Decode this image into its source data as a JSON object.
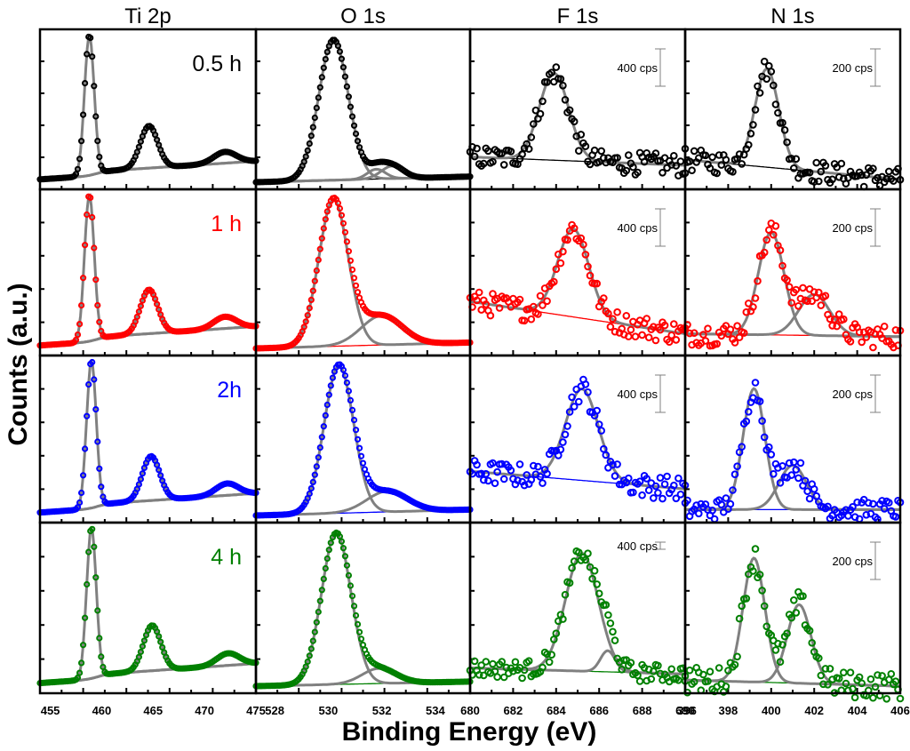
{
  "chart_data": {
    "type": "line",
    "title": "",
    "xlabel": "Binding Energy (eV)",
    "ylabel": "Counts (a.u.)",
    "grid": false,
    "legend": "none",
    "columns": [
      {
        "name": "Ti 2p",
        "xlim": [
          454,
          475
        ],
        "ticks": [
          455,
          460,
          465,
          470,
          475
        ],
        "tick_labels": [
          "455",
          "460",
          "465",
          "470",
          "475"
        ],
        "scale_bar": null
      },
      {
        "name": "O 1s",
        "xlim": [
          527.3,
          535.3
        ],
        "ticks": [
          528,
          530,
          532,
          534
        ],
        "tick_labels": [
          "528",
          "530",
          "532",
          "534"
        ],
        "scale_bar": null
      },
      {
        "name": "F 1s",
        "xlim": [
          680,
          690
        ],
        "ticks": [
          680,
          682,
          684,
          686,
          688,
          690
        ],
        "tick_labels": [
          "680",
          "682",
          "684",
          "686",
          "688",
          "690"
        ],
        "scale_bar": "400 cps"
      },
      {
        "name": "N 1s",
        "xlim": [
          396,
          406
        ],
        "ticks": [
          396,
          398,
          400,
          402,
          404,
          406
        ],
        "tick_labels": [
          "396",
          "398",
          "400",
          "402",
          "404",
          "406"
        ],
        "scale_bar": "200 cps"
      }
    ],
    "rows": [
      {
        "label": "0.5 h",
        "color": "#000000"
      },
      {
        "label": "1 h",
        "color": "#ff0000"
      },
      {
        "label": "2h",
        "color": "#0000ff"
      },
      {
        "label": "4 h",
        "color": "#008000"
      }
    ],
    "fit_color": "#808080",
    "panels": [
      [
        {
          "peaks": [
            {
              "center": 458.8,
              "height": 1.0,
              "fwhm": 1.1
            },
            {
              "center": 464.6,
              "height": 0.3,
              "fwhm": 2.0
            },
            {
              "center": 472.0,
              "height": 0.08,
              "fwhm": 2.6
            }
          ],
          "background": [
            0.02,
            0.12
          ],
          "step": 459.5,
          "noise": 0.0
        },
        {
          "peaks": [
            {
              "center": 530.2,
              "height": 1.0,
              "fwhm": 1.3
            },
            {
              "center": 531.8,
              "height": 0.07,
              "fwhm": 0.8
            },
            {
              "center": 532.4,
              "height": 0.09,
              "fwhm": 1.0
            }
          ],
          "background": [
            0.0,
            0.04
          ],
          "step": null,
          "noise": 0.0
        },
        {
          "peaks": [
            {
              "center": 683.9,
              "height": 0.62,
              "fwhm": 1.6
            }
          ],
          "background": [
            0.18,
            0.12
          ],
          "step": null,
          "noise": 0.08
        },
        {
          "peaks": [
            {
              "center": 399.8,
              "height": 0.7,
              "fwhm": 1.3
            }
          ],
          "background": [
            0.16,
            0.02
          ],
          "step": null,
          "noise": 0.08
        }
      ],
      [
        {
          "peaks": [
            {
              "center": 458.8,
              "height": 1.0,
              "fwhm": 1.1
            },
            {
              "center": 464.6,
              "height": 0.3,
              "fwhm": 2.0
            },
            {
              "center": 472.0,
              "height": 0.08,
              "fwhm": 2.6
            }
          ],
          "background": [
            0.02,
            0.12
          ],
          "step": 459.5,
          "noise": 0.0
        },
        {
          "peaks": [
            {
              "center": 530.2,
              "height": 1.0,
              "fwhm": 1.3
            },
            {
              "center": 532.0,
              "height": 0.2,
              "fwhm": 1.8
            }
          ],
          "background": [
            0.0,
            0.04
          ],
          "step": null,
          "noise": 0.0
        },
        {
          "peaks": [
            {
              "center": 684.8,
              "height": 0.6,
              "fwhm": 1.7
            }
          ],
          "background": [
            0.32,
            0.1
          ],
          "step": null,
          "noise": 0.08
        },
        {
          "peaks": [
            {
              "center": 400.0,
              "height": 0.7,
              "fwhm": 1.4
            },
            {
              "center": 402.0,
              "height": 0.28,
              "fwhm": 1.7
            }
          ],
          "background": [
            0.1,
            0.08
          ],
          "step": null,
          "noise": 0.08
        }
      ],
      [
        {
          "peaks": [
            {
              "center": 459.0,
              "height": 1.0,
              "fwhm": 1.1
            },
            {
              "center": 464.8,
              "height": 0.3,
              "fwhm": 2.0
            },
            {
              "center": 472.2,
              "height": 0.08,
              "fwhm": 2.6
            }
          ],
          "background": [
            0.02,
            0.12
          ],
          "step": 459.6,
          "noise": 0.0
        },
        {
          "peaks": [
            {
              "center": 530.4,
              "height": 1.0,
              "fwhm": 1.3
            },
            {
              "center": 532.2,
              "height": 0.14,
              "fwhm": 1.8
            }
          ],
          "background": [
            0.0,
            0.04
          ],
          "step": null,
          "noise": 0.0
        },
        {
          "peaks": [
            {
              "center": 685.2,
              "height": 0.62,
              "fwhm": 1.8
            }
          ],
          "background": [
            0.3,
            0.18
          ],
          "step": null,
          "noise": 0.08
        },
        {
          "peaks": [
            {
              "center": 399.2,
              "height": 0.82,
              "fwhm": 1.2
            },
            {
              "center": 401.0,
              "height": 0.3,
              "fwhm": 1.5
            }
          ],
          "background": [
            0.04,
            0.04
          ],
          "step": null,
          "noise": 0.07
        }
      ],
      [
        {
          "peaks": [
            {
              "center": 459.0,
              "height": 1.0,
              "fwhm": 1.1
            },
            {
              "center": 464.9,
              "height": 0.3,
              "fwhm": 2.0
            },
            {
              "center": 472.3,
              "height": 0.08,
              "fwhm": 2.6
            }
          ],
          "background": [
            0.02,
            0.12
          ],
          "step": 459.6,
          "noise": 0.0
        },
        {
          "peaks": [
            {
              "center": 530.3,
              "height": 1.0,
              "fwhm": 1.3
            },
            {
              "center": 531.9,
              "height": 0.1,
              "fwhm": 1.5
            }
          ],
          "background": [
            0.0,
            0.03
          ],
          "step": null,
          "noise": 0.0
        },
        {
          "peaks": [
            {
              "center": 685.2,
              "height": 0.78,
              "fwhm": 1.8
            },
            {
              "center": 686.4,
              "height": 0.14,
              "fwhm": 0.8
            }
          ],
          "background": [
            0.12,
            0.08
          ],
          "step": null,
          "noise": 0.06
        },
        {
          "peaks": [
            {
              "center": 399.2,
              "height": 0.82,
              "fwhm": 1.2
            },
            {
              "center": 401.3,
              "height": 0.52,
              "fwhm": 1.3
            }
          ],
          "background": [
            0.04,
            0.0
          ],
          "step": null,
          "noise": 0.09
        }
      ]
    ]
  }
}
